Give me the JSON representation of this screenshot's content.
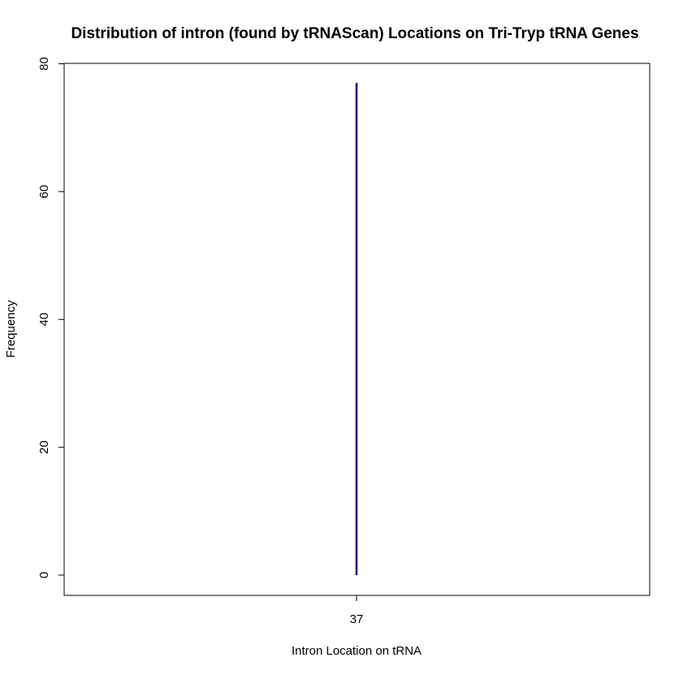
{
  "chart_data": {
    "type": "bar",
    "title": "Distribution of intron (found by tRNAScan) Locations on Tri-Tryp tRNA Genes",
    "xlabel": "Intron Location on tRNA",
    "ylabel": "Frequency",
    "categories": [
      "37"
    ],
    "values": [
      77
    ],
    "ylim": [
      0,
      80
    ],
    "yticks": [
      0,
      20,
      40,
      60,
      80
    ],
    "grid": false,
    "legend": "none",
    "series_color": "#000080"
  }
}
